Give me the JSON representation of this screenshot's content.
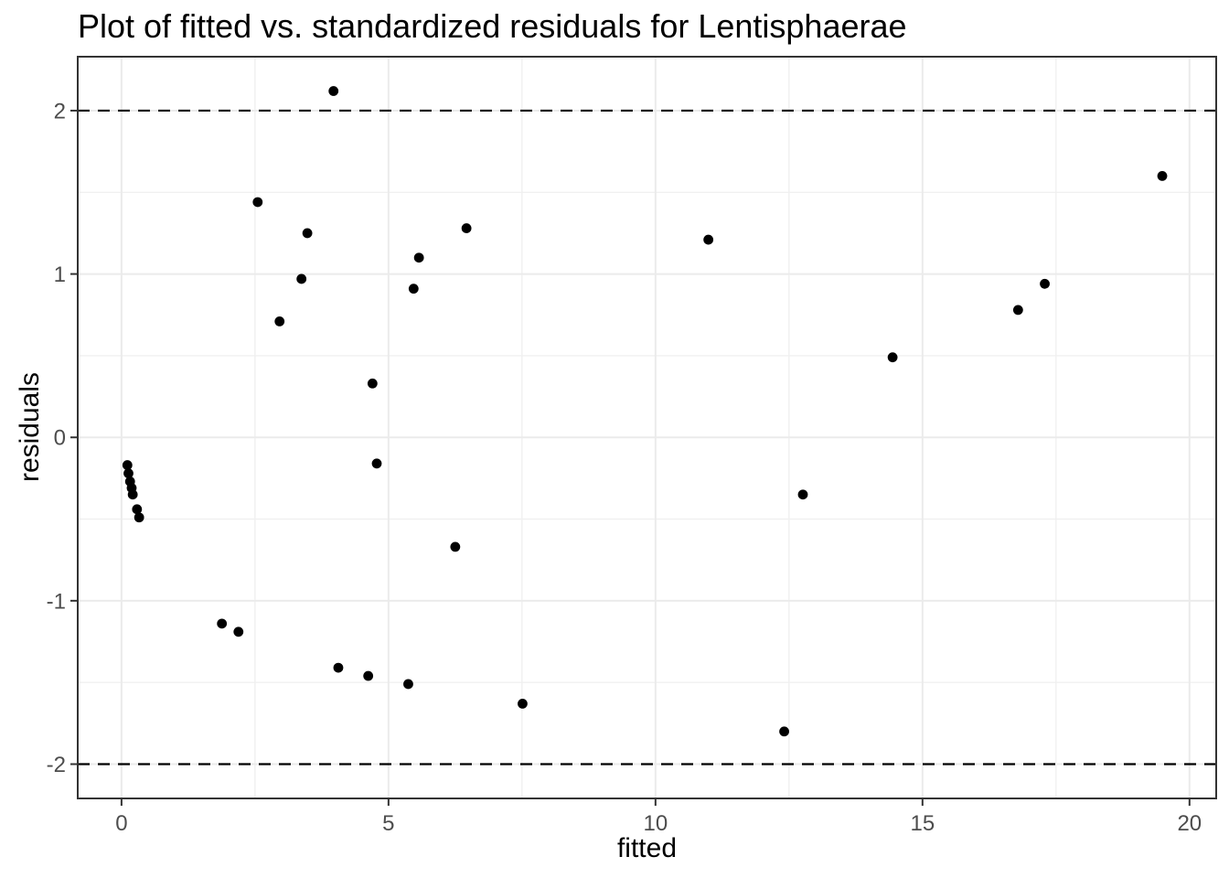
{
  "chart_data": {
    "type": "scatter",
    "title": "Plot of fitted vs. standardized residuals for Lentisphaerae",
    "xlabel": "fitted",
    "ylabel": "residuals",
    "x_axis": {
      "range": [
        -0.82,
        20.5
      ],
      "major_ticks": [
        0,
        5,
        10,
        15,
        20
      ],
      "labels": [
        "0",
        "5",
        "10",
        "15",
        "20"
      ],
      "minor_ticks": [
        2.5,
        7.5,
        12.5,
        17.5
      ]
    },
    "y_axis": {
      "range": [
        -2.21,
        2.33
      ],
      "major_ticks": [
        -2,
        -1,
        0,
        1,
        2
      ],
      "labels": [
        "-2",
        "-1",
        "0",
        "1",
        "2"
      ],
      "minor_ticks": [
        -1.5,
        -0.5,
        0.5,
        1.5
      ]
    },
    "reference_lines": [
      {
        "y": 2,
        "style": "dashed"
      },
      {
        "y": -2,
        "style": "dashed"
      }
    ],
    "points": [
      [
        3.97,
        2.12
      ],
      [
        19.49,
        1.6
      ],
      [
        2.55,
        1.44
      ],
      [
        6.46,
        1.28
      ],
      [
        3.48,
        1.25
      ],
      [
        10.99,
        1.21
      ],
      [
        5.57,
        1.1
      ],
      [
        3.37,
        0.97
      ],
      [
        17.29,
        0.94
      ],
      [
        5.47,
        0.91
      ],
      [
        16.79,
        0.78
      ],
      [
        2.96,
        0.71
      ],
      [
        14.44,
        0.49
      ],
      [
        4.7,
        0.33
      ],
      [
        4.78,
        -0.16
      ],
      [
        0.11,
        -0.17
      ],
      [
        0.13,
        -0.22
      ],
      [
        0.16,
        -0.27
      ],
      [
        0.19,
        -0.31
      ],
      [
        0.21,
        -0.35
      ],
      [
        0.29,
        -0.44
      ],
      [
        0.33,
        -0.49
      ],
      [
        12.76,
        -0.35
      ],
      [
        6.25,
        -0.67
      ],
      [
        1.88,
        -1.14
      ],
      [
        2.19,
        -1.19
      ],
      [
        4.06,
        -1.41
      ],
      [
        4.62,
        -1.46
      ],
      [
        5.37,
        -1.51
      ],
      [
        7.51,
        -1.63
      ],
      [
        12.41,
        -1.8
      ]
    ],
    "grid": true,
    "legend": false,
    "colors": {
      "background": "#ffffff",
      "panel_background": "#ffffff",
      "grid_major": "#ebebeb",
      "grid_minor": "#f0f0f0",
      "panel_border": "#333333",
      "tick_mark": "#333333",
      "tick_label": "#4d4d4d",
      "text": "#000000",
      "point": "#000000",
      "reference_line": "#000000"
    }
  }
}
